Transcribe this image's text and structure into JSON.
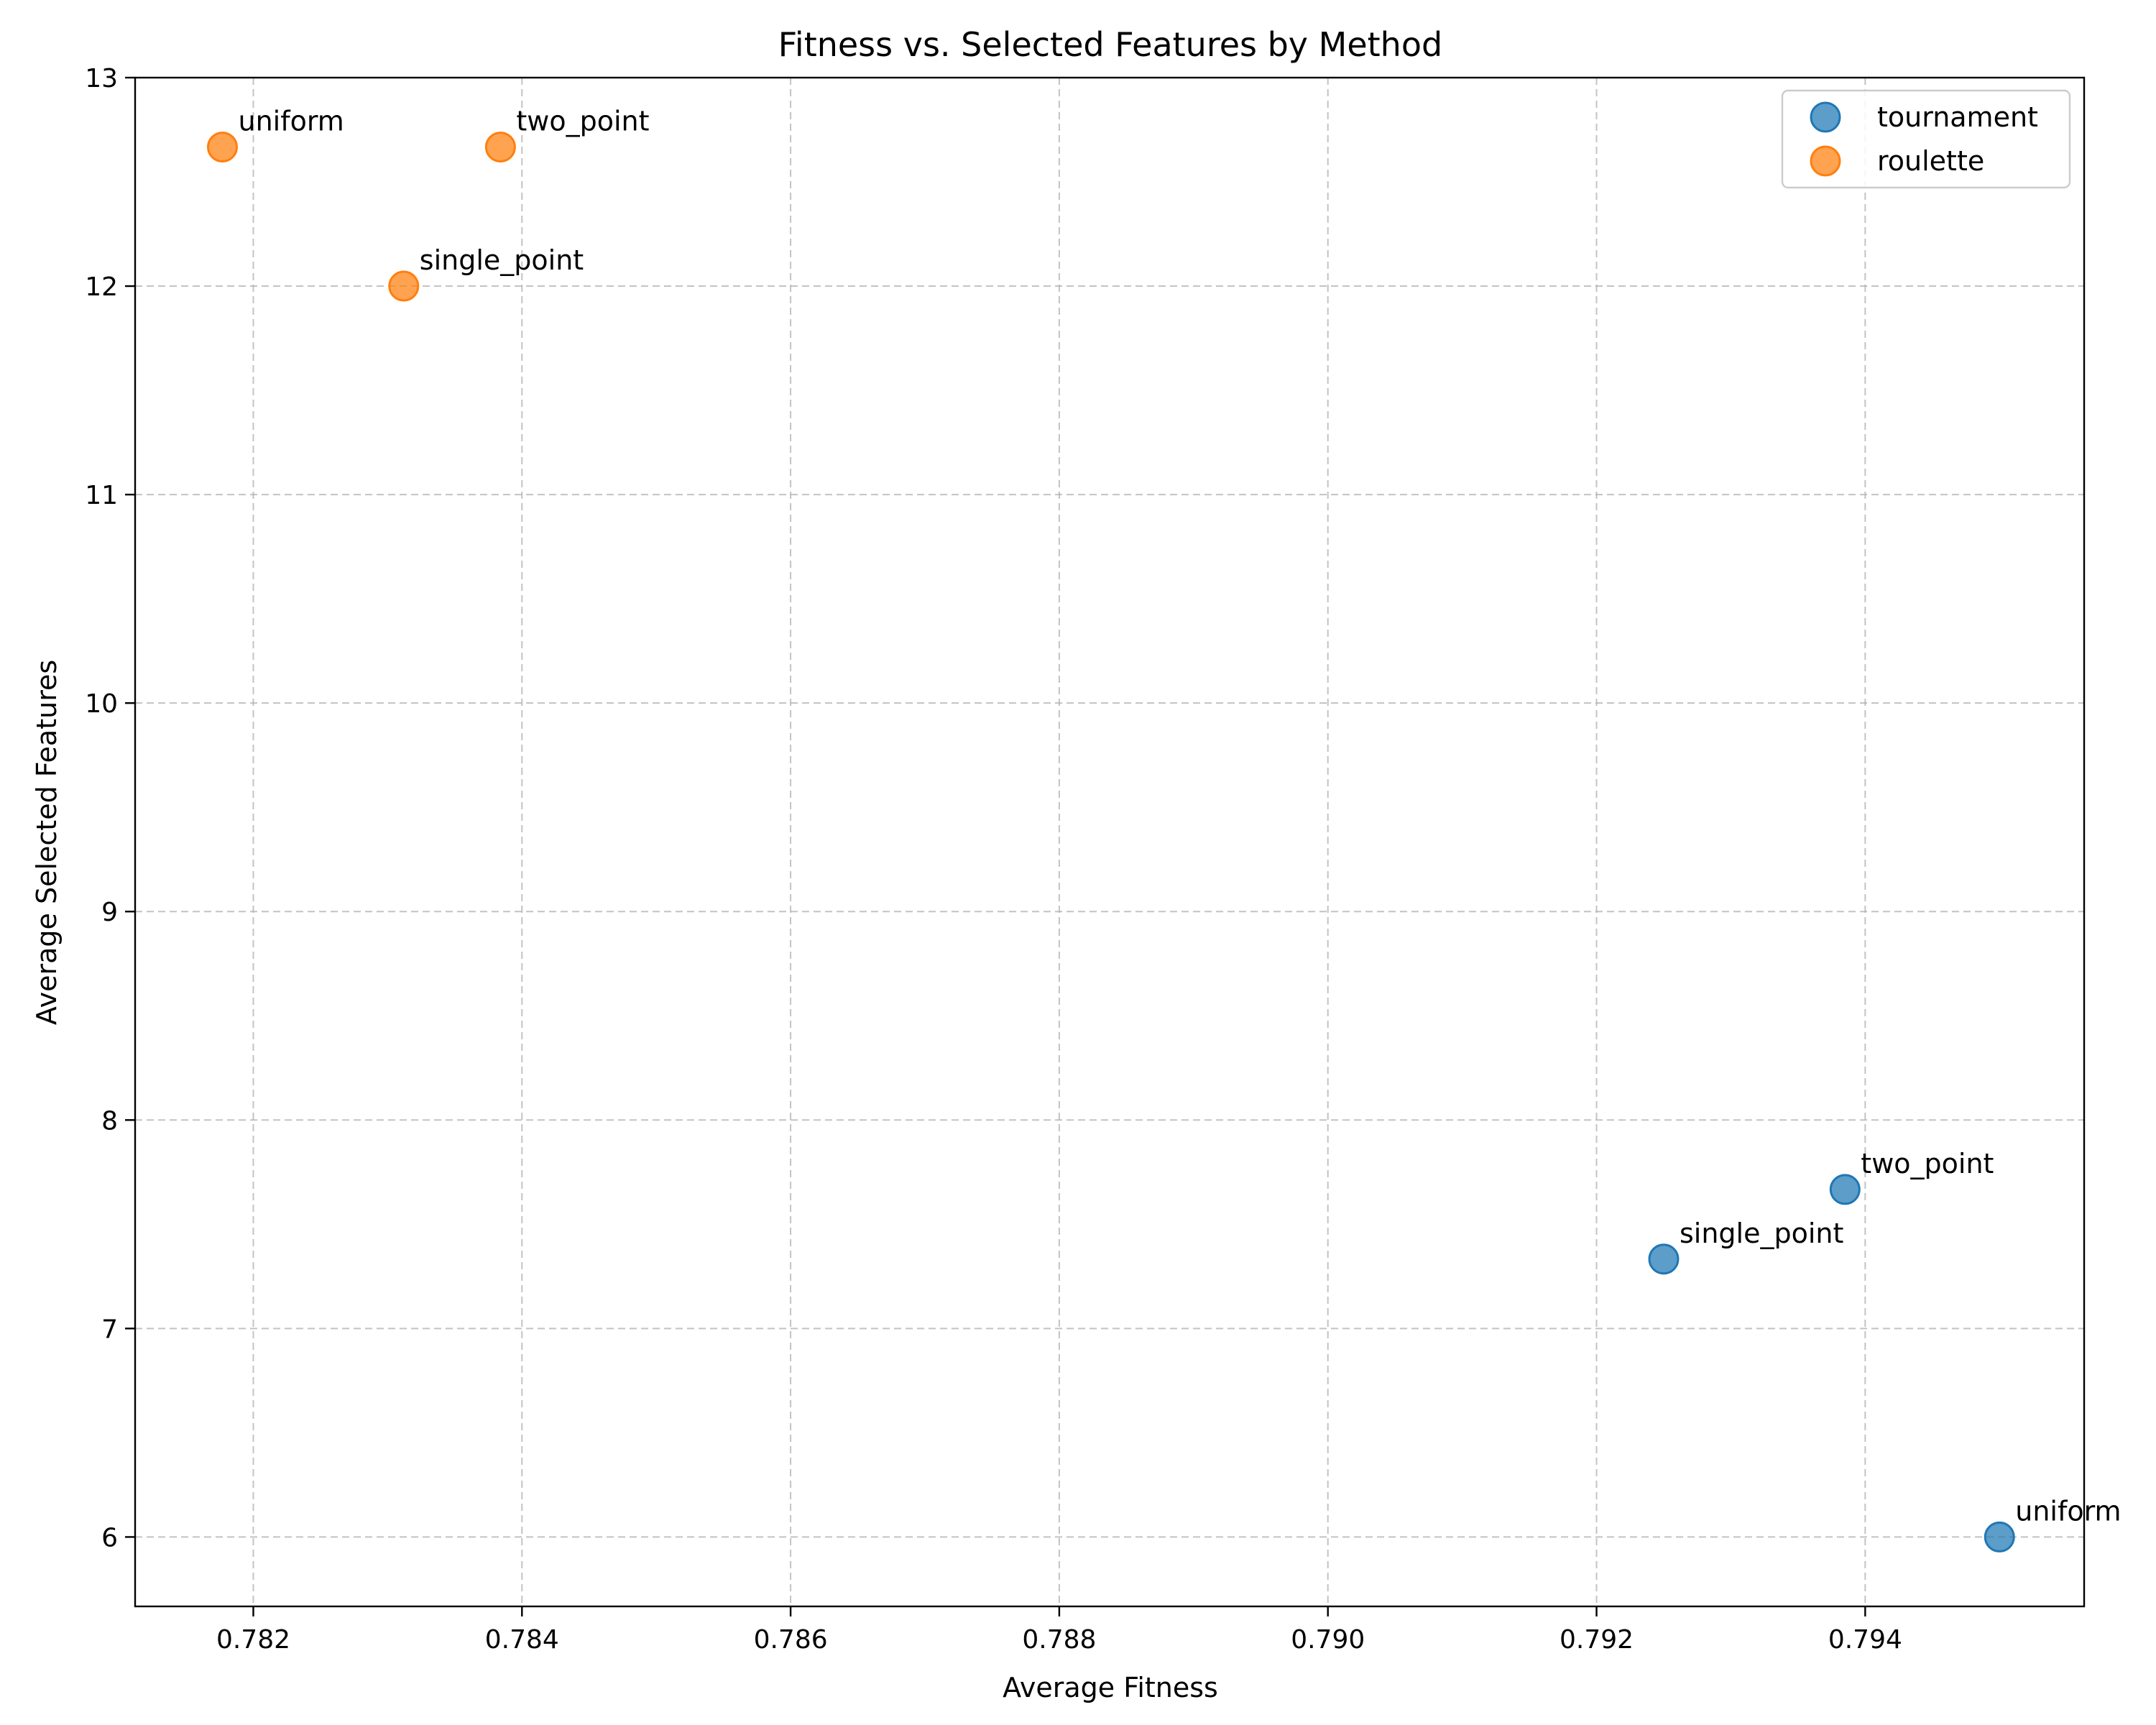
{
  "chart_data": {
    "type": "scatter",
    "title": "Fitness vs. Selected Features by Method",
    "xlabel": "Average Fitness",
    "ylabel": "Average Selected Features",
    "xlim": [
      0.78112,
      0.79563
    ],
    "ylim": [
      5.667,
      13.0
    ],
    "xticks": [
      0.782,
      0.784,
      0.786,
      0.788,
      0.79,
      0.792,
      0.794
    ],
    "xtick_labels": [
      "0.782",
      "0.784",
      "0.786",
      "0.788",
      "0.790",
      "0.792",
      "0.794"
    ],
    "yticks": [
      6,
      7,
      8,
      9,
      10,
      11,
      12,
      13
    ],
    "ytick_labels": [
      "6",
      "7",
      "8",
      "9",
      "10",
      "11",
      "12",
      "13"
    ],
    "grid": true,
    "legend_position": "top-right",
    "series": [
      {
        "name": "tournament",
        "color": "#1f77b4",
        "points": [
          {
            "x": 0.7925,
            "y": 7.333,
            "label": "single_point"
          },
          {
            "x": 0.79385,
            "y": 7.667,
            "label": "two_point"
          },
          {
            "x": 0.795,
            "y": 6.0,
            "label": "uniform"
          }
        ]
      },
      {
        "name": "roulette",
        "color": "#ff7f0e",
        "points": [
          {
            "x": 0.78312,
            "y": 12.0,
            "label": "single_point"
          },
          {
            "x": 0.78384,
            "y": 12.667,
            "label": "two_point"
          },
          {
            "x": 0.78177,
            "y": 12.667,
            "label": "uniform"
          }
        ]
      }
    ]
  }
}
